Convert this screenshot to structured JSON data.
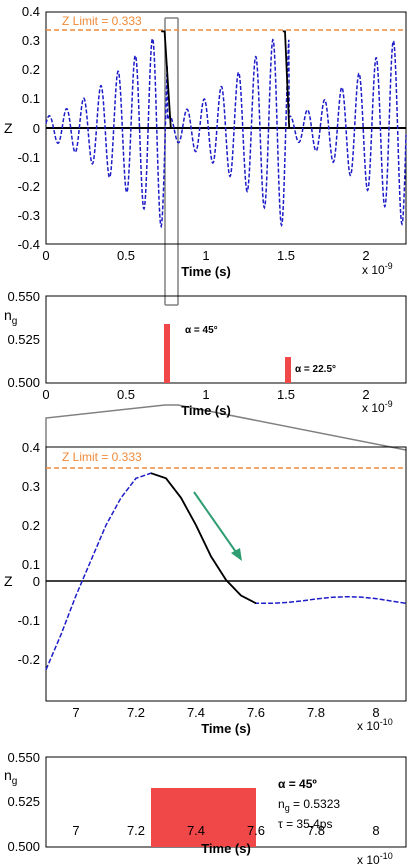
{
  "colors": {
    "wave": "#1c1cc8",
    "limit": "#f08a3a",
    "black": "#000000",
    "bar": "#f04848",
    "arrow": "#2e9e72",
    "connector": "#808080"
  },
  "chart_data": [
    {
      "id": "p1",
      "type": "line",
      "xlabel": "Time (s)",
      "ylabel": "Z",
      "x_exponent_label": "x 10",
      "x_exponent": "-9",
      "xlim": [
        0,
        2.25
      ],
      "ylim": [
        -0.4,
        0.4
      ],
      "xticks": [
        "0",
        "0.5",
        "1",
        "1.5",
        "2"
      ],
      "yticks": [
        "0.4",
        "0.3",
        "0.2",
        "0.1",
        "0",
        "-0.1",
        "-0.2",
        "-0.3",
        "-0.4"
      ],
      "limit_label": "Z Limit = 0.333",
      "limit_value": 0.333,
      "series": [
        {
          "style": "dashed",
          "color": "wave",
          "description_points": "oscillating wave, amplitude growing toward 0.333 at t=0.72 and t=1.48 (x1e-9)"
        },
        {
          "style": "solid",
          "color": "black",
          "windows": [
            [
              0.72,
              0.78
            ],
            [
              1.48,
              1.52
            ]
          ]
        }
      ]
    },
    {
      "id": "p2",
      "type": "bar",
      "xlabel": "Time (s)",
      "ylabel": "n",
      "ylabel_sub": "g",
      "x_exponent_label": "x 10",
      "x_exponent": "-9",
      "xlim": [
        0,
        2.25
      ],
      "ylim": [
        0.5,
        0.55
      ],
      "xticks": [
        "0",
        "0.5",
        "1",
        "1.5",
        "2"
      ],
      "yticks": [
        "0.550",
        "0.525",
        "0.500"
      ],
      "bars": [
        {
          "x_start": 0.72,
          "x_end": 0.76,
          "value": 0.5323
        },
        {
          "x_start": 1.48,
          "x_end": 1.52,
          "value": 0.514
        }
      ],
      "annotations": [
        {
          "text": "α = 45°"
        },
        {
          "text": "α = 22.5°"
        }
      ]
    },
    {
      "id": "p3",
      "type": "line",
      "xlabel": "Time (s)",
      "ylabel": "Z",
      "x_exponent_label": "x 10",
      "x_exponent": "-10",
      "xlim": [
        6.9,
        8.1
      ],
      "ylim": [
        -0.25,
        0.4
      ],
      "xticks": [
        "7",
        "7.2",
        "7.4",
        "7.6",
        "7.8",
        "8"
      ],
      "yticks": [
        "0.4",
        "0.3",
        "0.2",
        "0.1",
        "0",
        "-0.1",
        "-0.2"
      ],
      "limit_label": "Z Limit = 0.333",
      "limit_value": 0.333,
      "series": [
        {
          "style": "dashed",
          "color": "wave",
          "x": [
            6.9,
            6.95,
            7.0,
            7.05,
            7.1,
            7.15,
            7.2,
            7.25,
            7.3,
            7.35,
            7.4,
            7.45,
            7.5,
            7.55,
            7.6,
            7.65,
            7.7,
            7.75,
            7.8,
            7.85,
            7.9,
            7.95,
            8.0,
            8.05,
            8.1
          ],
          "y": [
            -0.17,
            -0.08,
            0.02,
            0.11,
            0.2,
            0.27,
            0.32,
            0.333,
            0.32,
            0.27,
            0.2,
            0.12,
            0.06,
            0.02,
            0.0,
            0.0,
            0.002,
            0.006,
            0.011,
            0.015,
            0.017,
            0.016,
            0.012,
            0.006,
            0.0
          ]
        },
        {
          "style": "solid",
          "color": "black",
          "x": [
            7.25,
            7.3,
            7.35,
            7.4,
            7.45,
            7.5,
            7.55,
            7.6
          ],
          "y": [
            0.333,
            0.32,
            0.27,
            0.2,
            0.12,
            0.06,
            0.02,
            0.0
          ]
        }
      ]
    },
    {
      "id": "p4",
      "type": "bar",
      "xlabel": "Time (s)",
      "ylabel": "n",
      "ylabel_sub": "g",
      "x_exponent_label": "x 10",
      "x_exponent": "-10",
      "xlim": [
        6.9,
        8.1
      ],
      "ylim": [
        0.5,
        0.55
      ],
      "xticks": [
        "7",
        "7.2",
        "7.4",
        "7.6",
        "7.8",
        "8"
      ],
      "yticks": [
        "0.550",
        "0.525",
        "0.500"
      ],
      "bars": [
        {
          "x_start": 7.25,
          "x_end": 7.6,
          "value": 0.5323
        }
      ],
      "info": {
        "alpha": "α = 45º",
        "ng_prefix": "n",
        "ng_sub": "g",
        "ng_value": " = 0.5323",
        "tau": "τ = 35.4ps"
      }
    }
  ]
}
